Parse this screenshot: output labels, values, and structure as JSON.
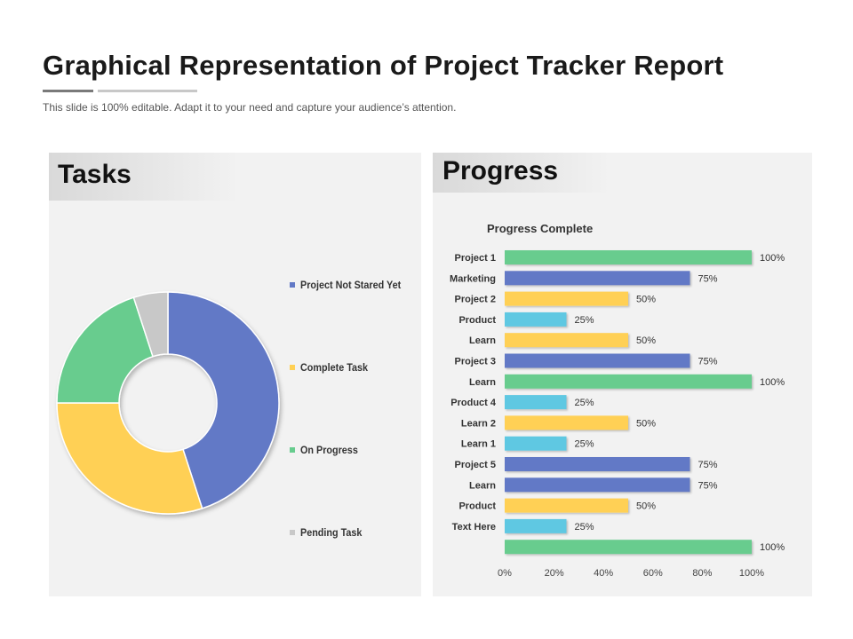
{
  "title": "Graphical Representation of Project Tracker Report",
  "subtitle": "This slide is 100% editable. Adapt it to your need and capture your audience’s attention.",
  "tasks_panel": {
    "heading": "Tasks"
  },
  "progress_panel": {
    "heading": "Progress"
  },
  "colors": {
    "blue": "#6279c6",
    "yellow": "#ffd054",
    "green": "#67cc8e",
    "gray": "#c8c8c8",
    "cyan": "#5ec8e2"
  },
  "chart_data": [
    {
      "type": "pie",
      "variant": "donut",
      "labels": [
        "Project Not Stared Yet",
        "Complete Task",
        "On Progress",
        "Pending Task"
      ],
      "values": [
        45,
        30,
        20,
        5
      ],
      "colors": [
        "#6279c6",
        "#ffd054",
        "#67cc8e",
        "#c8c8c8"
      ],
      "legend_position": "right"
    },
    {
      "type": "bar",
      "orientation": "horizontal",
      "title": "Progress Complete",
      "categories": [
        "Project 1",
        "Marketing",
        "Project 2",
        "Product",
        "Learn",
        "Project 3",
        "Learn",
        "Product 4",
        "Learn 2",
        "Learn 1",
        "Project 5",
        "Learn",
        "Product",
        "Text Here",
        ""
      ],
      "values": [
        100,
        75,
        50,
        25,
        50,
        75,
        100,
        25,
        50,
        25,
        75,
        75,
        50,
        25,
        100
      ],
      "value_labels": [
        "100%",
        "75%",
        "50%",
        "25%",
        "50%",
        "75%",
        "100%",
        "25%",
        "50%",
        "25%",
        "75%",
        "75%",
        "50%",
        "25%",
        "100%"
      ],
      "bar_colors": [
        "#67cc8e",
        "#6279c6",
        "#ffd054",
        "#5ec8e2",
        "#ffd054",
        "#6279c6",
        "#67cc8e",
        "#5ec8e2",
        "#ffd054",
        "#5ec8e2",
        "#6279c6",
        "#6279c6",
        "#ffd054",
        "#5ec8e2",
        "#67cc8e"
      ],
      "xlim": [
        0,
        100
      ],
      "x_ticks": [
        "0%",
        "20%",
        "40%",
        "60%",
        "80%",
        "100%"
      ],
      "grid": false
    }
  ]
}
